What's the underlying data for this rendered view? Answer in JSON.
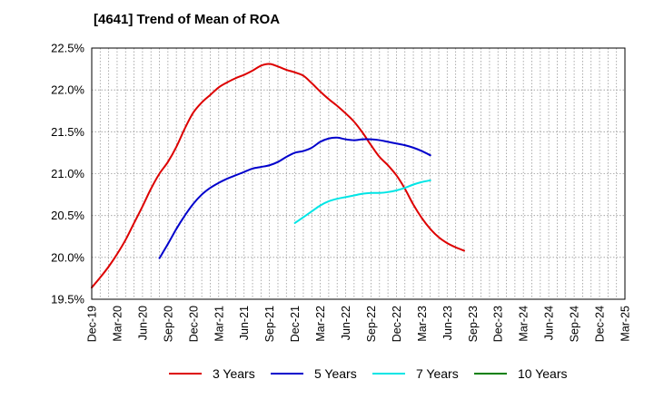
{
  "chart_data": {
    "type": "line",
    "title": "[4641]  Trend of Mean of ROA",
    "xlabel": "",
    "ylabel": "",
    "ylim": [
      19.5,
      22.5
    ],
    "yticks": [
      "19.5%",
      "20.0%",
      "20.5%",
      "21.0%",
      "21.5%",
      "22.0%",
      "22.5%"
    ],
    "ytick_values": [
      19.5,
      20.0,
      20.5,
      21.0,
      21.5,
      22.0,
      22.5
    ],
    "xticks": [
      "Dec-19",
      "Mar-20",
      "Jun-20",
      "Sep-20",
      "Dec-20",
      "Mar-21",
      "Jun-21",
      "Sep-21",
      "Dec-21",
      "Mar-22",
      "Jun-22",
      "Sep-22",
      "Dec-22",
      "Mar-23",
      "Jun-23",
      "Sep-23",
      "Dec-23",
      "Mar-24",
      "Jun-24",
      "Sep-24",
      "Dec-24",
      "Mar-25"
    ],
    "grid": true,
    "legend_position": "bottom",
    "series": [
      {
        "name": "3 Years",
        "color": "#dd0000",
        "start_index": 0,
        "values": [
          19.64,
          19.76,
          19.89,
          20.04,
          20.21,
          20.41,
          20.61,
          20.82,
          21.0,
          21.14,
          21.32,
          21.54,
          21.73,
          21.85,
          21.94,
          22.03,
          22.09,
          22.14,
          22.18,
          22.23,
          22.29,
          22.31,
          22.28,
          22.24,
          22.21,
          22.17,
          22.08,
          21.98,
          21.89,
          21.81,
          21.72,
          21.62,
          21.49,
          21.34,
          21.2,
          21.1,
          20.98,
          20.82,
          20.63,
          20.47,
          20.34,
          20.24,
          20.17,
          20.12,
          20.08
        ]
      },
      {
        "name": "5 Years",
        "color": "#0000cc",
        "start_index": 8,
        "values": [
          19.99,
          20.16,
          20.34,
          20.5,
          20.64,
          20.75,
          20.83,
          20.89,
          20.94,
          20.98,
          21.02,
          21.06,
          21.08,
          21.1,
          21.14,
          21.2,
          21.25,
          21.27,
          21.31,
          21.38,
          21.42,
          21.43,
          21.41,
          21.4,
          21.41,
          21.41,
          21.4,
          21.38,
          21.36,
          21.34,
          21.31,
          21.27,
          21.22
        ]
      },
      {
        "name": "7 Years",
        "color": "#00e5e5",
        "start_index": 24,
        "values": [
          20.41,
          20.48,
          20.55,
          20.62,
          20.67,
          20.7,
          20.72,
          20.74,
          20.76,
          20.77,
          20.77,
          20.78,
          20.8,
          20.83,
          20.87,
          20.9,
          20.92
        ]
      },
      {
        "name": "10 Years",
        "color": "#008000",
        "start_index": 0,
        "values": []
      }
    ]
  }
}
